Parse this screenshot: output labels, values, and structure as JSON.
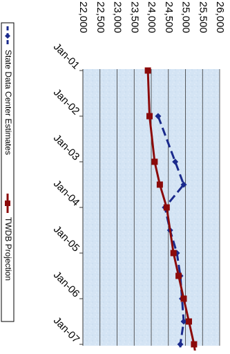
{
  "chart_data": {
    "type": "line",
    "orientation": "rotated-90-clockwise",
    "title": "",
    "xlabel": "",
    "ylabel": "",
    "categories": [
      "Jan-01",
      "Jan-02",
      "Jan-03",
      "Jan-04",
      "Jan-05",
      "Jan-06",
      "Jan-07"
    ],
    "ylim": [
      22000,
      26000
    ],
    "yticks": [
      {
        "value": 22000,
        "label": "22,000"
      },
      {
        "value": 22500,
        "label": "22,500"
      },
      {
        "value": 23000,
        "label": "23,000"
      },
      {
        "value": 23500,
        "label": "23,500"
      },
      {
        "value": 24000,
        "label": "24,000"
      },
      {
        "value": 24500,
        "label": "24,500"
      },
      {
        "value": 25000,
        "label": "25,000"
      },
      {
        "value": 25500,
        "label": "25,500"
      },
      {
        "value": 26000,
        "label": "26,000"
      }
    ],
    "grid": true,
    "legend": "left",
    "series": [
      {
        "name": "State Data Center Estimates",
        "color": "#1a2a8c",
        "line_style": "dashed",
        "marker": "diamond",
        "points": [
          {
            "x": "Jan-02",
            "y": 24200
          },
          {
            "x": "Jan-03",
            "y": 24700
          },
          {
            "x": "Jan-03",
            "y": 24950
          },
          {
            "x": "Jan-04",
            "y": 24400
          },
          {
            "x": "Jan-04",
            "y": 24550
          },
          {
            "x": "Jan-05",
            "y": 24750
          },
          {
            "x": "Jan-05",
            "y": 24850
          },
          {
            "x": "Jan-06",
            "y": 24900
          },
          {
            "x": "Jan-06",
            "y": 24950
          },
          {
            "x": "Jan-07",
            "y": 24850
          },
          {
            "x": "Jan-07",
            "y": 24850
          }
        ]
      },
      {
        "name": "TWDB Projection",
        "color": "#8b0a0a",
        "line_style": "solid",
        "marker": "square",
        "points": [
          {
            "x": "Jan-01",
            "y": 23900
          },
          {
            "x": "Jan-02",
            "y": 23950
          },
          {
            "x": "Jan-03",
            "y": 24100
          },
          {
            "x": "Jan-03",
            "y": 24250
          },
          {
            "x": "Jan-04",
            "y": 24450
          },
          {
            "x": "Jan-05",
            "y": 24650
          },
          {
            "x": "Jan-05",
            "y": 24800
          },
          {
            "x": "Jan-06",
            "y": 24950
          },
          {
            "x": "Jan-06",
            "y": 25100
          },
          {
            "x": "Jan-07",
            "y": 25250
          },
          {
            "x": "Jan-07",
            "y": 25350
          }
        ]
      }
    ]
  }
}
